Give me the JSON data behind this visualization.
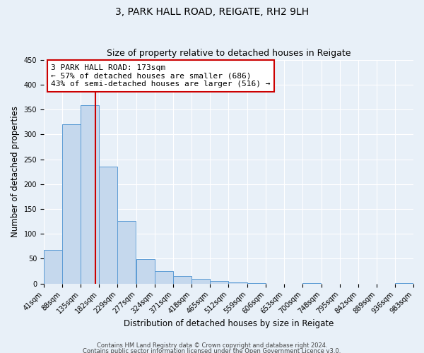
{
  "title": "3, PARK HALL ROAD, REIGATE, RH2 9LH",
  "subtitle": "Size of property relative to detached houses in Reigate",
  "xlabel": "Distribution of detached houses by size in Reigate",
  "ylabel": "Number of detached properties",
  "bin_edges": [
    41,
    88,
    135,
    182,
    229,
    277,
    324,
    371,
    418,
    465,
    512,
    559,
    606,
    653,
    700,
    748,
    795,
    842,
    889,
    936,
    983
  ],
  "bar_heights": [
    68,
    320,
    358,
    235,
    126,
    49,
    25,
    15,
    10,
    5,
    2,
    1,
    0,
    0,
    1,
    0,
    0,
    0,
    0,
    1
  ],
  "bar_color": "#c5d8ed",
  "bar_edge_color": "#5b9bd5",
  "property_value": 173,
  "vline_color": "#cc0000",
  "annotation_box_edge_color": "#cc0000",
  "annotation_lines": [
    "3 PARK HALL ROAD: 173sqm",
    "← 57% of detached houses are smaller (686)",
    "43% of semi-detached houses are larger (516) →"
  ],
  "ylim": [
    0,
    450
  ],
  "yticks": [
    0,
    50,
    100,
    150,
    200,
    250,
    300,
    350,
    400,
    450
  ],
  "tick_labels": [
    "41sqm",
    "88sqm",
    "135sqm",
    "182sqm",
    "229sqm",
    "277sqm",
    "324sqm",
    "371sqm",
    "418sqm",
    "465sqm",
    "512sqm",
    "559sqm",
    "606sqm",
    "653sqm",
    "700sqm",
    "748sqm",
    "795sqm",
    "842sqm",
    "889sqm",
    "936sqm",
    "983sqm"
  ],
  "footer_lines": [
    "Contains HM Land Registry data © Crown copyright and database right 2024.",
    "Contains public sector information licensed under the Open Government Licence v3.0."
  ],
  "background_color": "#e8f0f8",
  "plot_bg_color": "#e8f0f8",
  "grid_color": "#ffffff",
  "title_fontsize": 10,
  "subtitle_fontsize": 9,
  "axis_label_fontsize": 8.5,
  "tick_fontsize": 7,
  "footer_fontsize": 6,
  "annotation_fontsize": 8
}
